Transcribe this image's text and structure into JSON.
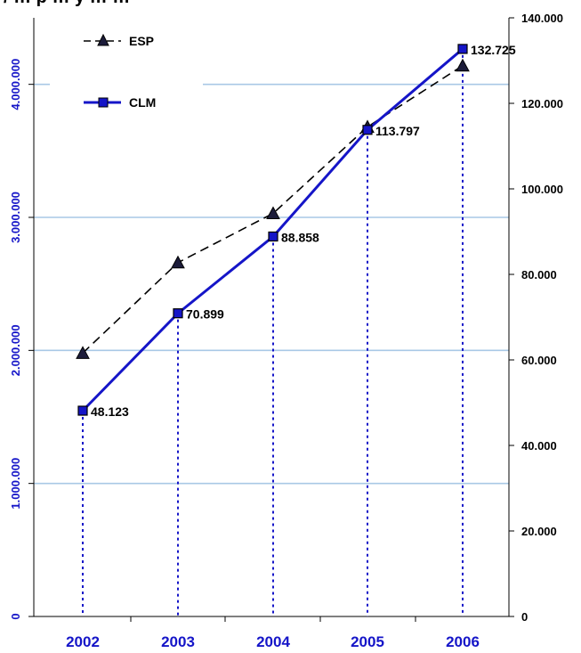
{
  "title_fragment": "/ … p …  y … …",
  "chart_data": {
    "type": "line",
    "categories": [
      "2002",
      "2003",
      "2004",
      "2005",
      "2006"
    ],
    "series": [
      {
        "name": "ESP",
        "axis": "left",
        "style": "dashed",
        "marker": "triangle",
        "color": "#000000",
        "values": [
          1980000,
          2660000,
          3030000,
          3680000,
          4140000
        ]
      },
      {
        "name": "CLM",
        "axis": "right",
        "style": "solid",
        "marker": "square",
        "color": "#1515C8",
        "values": [
          48123,
          70899,
          88858,
          113797,
          132725
        ],
        "data_labels": [
          "48.123",
          "70.899",
          "88.858",
          "113.797",
          "132.725"
        ]
      }
    ],
    "left_axis": {
      "min": 0,
      "max": 4500000,
      "ticks": [
        {
          "v": 0,
          "label": "0"
        },
        {
          "v": 1000000,
          "label": "1.000.000"
        },
        {
          "v": 2000000,
          "label": "2.000.000"
        },
        {
          "v": 3000000,
          "label": "3.000.000"
        },
        {
          "v": 4000000,
          "label": "4.000.000"
        }
      ],
      "color": "#1515C8"
    },
    "right_axis": {
      "min": 0,
      "max": 140000,
      "ticks": [
        {
          "v": 0,
          "label": "0"
        },
        {
          "v": 20000,
          "label": "20.000"
        },
        {
          "v": 40000,
          "label": "40.000"
        },
        {
          "v": 60000,
          "label": "60.000"
        },
        {
          "v": 80000,
          "label": "80.000"
        },
        {
          "v": 100000,
          "label": "100.000"
        },
        {
          "v": 120000,
          "label": "120.000"
        },
        {
          "v": 140000,
          "label": "140.000"
        }
      ],
      "color": "#000000"
    },
    "gridlines": "horizontal (left axis)",
    "grid_color": "#A9C8E6",
    "drop_lines": "dotted vertical from CLM points to x-axis",
    "legend": {
      "position": "top-left",
      "entries": [
        "ESP",
        "CLM"
      ]
    }
  }
}
